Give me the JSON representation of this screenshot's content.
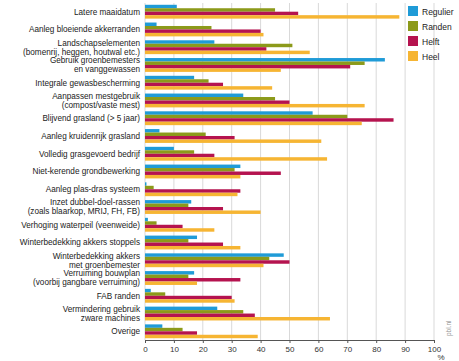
{
  "chart_data": {
    "type": "bar",
    "orientation": "horizontal",
    "grid": true,
    "legend": "top-right",
    "x_label": "%",
    "annotation": "pbl.nl",
    "categories": [
      "Latere maaidatum",
      "Aanleg bloeiende akkerranden",
      "Landschapselementen\n(bomenrij, heggen, houtwal etc.)",
      "Gebruik groenbemesters\nen vanggewassen",
      "Integrale gewasbescherming",
      "Aanpassen mestgebruik\n(compost/vaste mest)",
      "Blijvend grasland (> 5 jaar)",
      "Aanleg kruidenrijk grasland",
      "Volledig grasgevoerd bedrijf",
      "Niet-kerende grondbewerking",
      "Aanleg plas-dras systeem",
      "Inzet dubbel-doel-rassen\n(zoals blaarkop, MRIJ, FH, FB)",
      "Verhoging waterpeil (veenweide)",
      "Winterbedekking akkers stoppels",
      "Winterbedekking akkers\nmet groenbemester",
      "Verruiming bouwplan\n(voorbij gangbare verruiming)",
      "FAB randen",
      "Vermindering gebruik\nzware machines",
      "Overige"
    ],
    "series": [
      {
        "name": "Regulier",
        "color": "#1f9bd7",
        "values": [
          11,
          4,
          24,
          83,
          17,
          34,
          58,
          5,
          10,
          33,
          0.5,
          16,
          1,
          18,
          48,
          17,
          2,
          25,
          6
        ]
      },
      {
        "name": "Randen",
        "color": "#8c9a1a",
        "values": [
          45,
          23,
          51,
          76,
          22,
          45,
          70,
          21,
          17,
          31,
          3,
          15,
          4,
          15,
          43,
          15,
          7,
          34,
          13
        ]
      },
      {
        "name": "Helft",
        "color": "#b5134f",
        "values": [
          53,
          40,
          42,
          71,
          27,
          50,
          86,
          31,
          24,
          47,
          33,
          27,
          13,
          27,
          50,
          33,
          30,
          38,
          18
        ]
      },
      {
        "name": "Heel",
        "color": "#f6b533",
        "values": [
          88,
          41,
          57,
          47,
          44,
          76,
          75,
          61,
          63,
          33,
          32,
          40,
          24,
          33,
          41,
          18,
          31,
          64,
          39
        ]
      }
    ],
    "xlim": [
      0,
      100
    ],
    "xticks": [
      0,
      10,
      20,
      30,
      40,
      50,
      60,
      70,
      80,
      90,
      100
    ]
  }
}
